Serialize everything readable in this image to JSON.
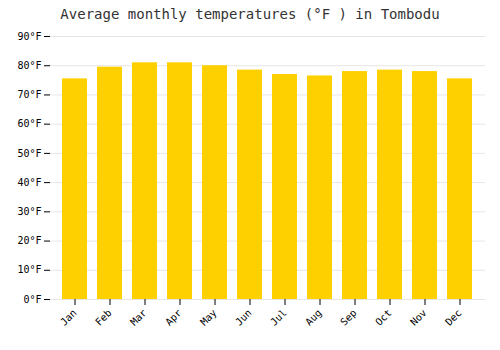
{
  "chart_data": {
    "type": "bar",
    "title": "Average monthly temperatures (°F ) in Tombodu",
    "categories": [
      "Jan",
      "Feb",
      "Mar",
      "Apr",
      "May",
      "Jun",
      "Jul",
      "Aug",
      "Sep",
      "Oct",
      "Nov",
      "Dec"
    ],
    "values": [
      75.5,
      79.5,
      81.0,
      81.0,
      80.0,
      78.5,
      77.0,
      76.5,
      78.0,
      78.5,
      78.0,
      75.5
    ],
    "color": "#FFD000",
    "ylim": [
      0,
      90
    ],
    "yticks": [
      {
        "value": 0,
        "label": "0°F"
      },
      {
        "value": 10,
        "label": "10°F"
      },
      {
        "value": 20,
        "label": "20°F"
      },
      {
        "value": 30,
        "label": "30°F"
      },
      {
        "value": 40,
        "label": "40°F"
      },
      {
        "value": 50,
        "label": "50°F"
      },
      {
        "value": 60,
        "label": "60°F"
      },
      {
        "value": 70,
        "label": "70°F"
      },
      {
        "value": 80,
        "label": "80°F"
      },
      {
        "value": 90,
        "label": "90°F"
      }
    ],
    "grid": true
  }
}
